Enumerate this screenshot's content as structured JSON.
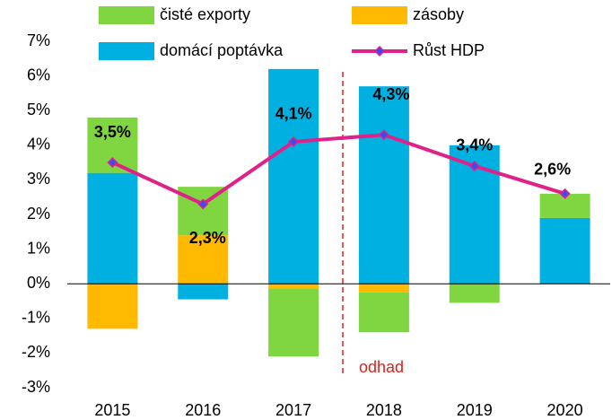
{
  "chart_data": {
    "type": "stacked_bar_line",
    "categories": [
      "2015",
      "2016",
      "2017",
      "2018",
      "2019",
      "2020"
    ],
    "series": [
      {
        "name": "domácí poptávka",
        "color": "#00b0e0",
        "values": [
          3.2,
          -0.45,
          6.2,
          5.7,
          4.0,
          1.9
        ]
      },
      {
        "name": "zásoby",
        "color": "#ffb900",
        "values": [
          -1.3,
          1.4,
          -0.15,
          -0.25,
          0,
          0
        ]
      },
      {
        "name": "čisté exporty",
        "color": "#80d640",
        "values": [
          1.6,
          1.4,
          -1.95,
          -1.15,
          -0.55,
          0.7
        ]
      },
      {
        "name": "Růst HDP",
        "color": "#e0218a",
        "type": "line",
        "values": [
          3.5,
          2.3,
          4.1,
          4.3,
          3.4,
          2.6
        ],
        "value_labels": [
          "3,5%",
          "2,3%",
          "4,1%",
          "4,3%",
          "3,4%",
          "2,6%"
        ]
      }
    ],
    "ylim": [
      -3,
      7
    ],
    "yticks": [
      {
        "value": -3,
        "label": "-3%"
      },
      {
        "value": -2,
        "label": "-2%"
      },
      {
        "value": -1,
        "label": "-1%"
      },
      {
        "value": 0,
        "label": "0%"
      },
      {
        "value": 1,
        "label": "1%"
      },
      {
        "value": 2,
        "label": "2%"
      },
      {
        "value": 3,
        "label": "3%"
      },
      {
        "value": 4,
        "label": "4%"
      },
      {
        "value": 5,
        "label": "5%"
      },
      {
        "value": 6,
        "label": "6%"
      },
      {
        "value": 7,
        "label": "7%"
      }
    ],
    "annotation": "odhad",
    "grid": false
  }
}
